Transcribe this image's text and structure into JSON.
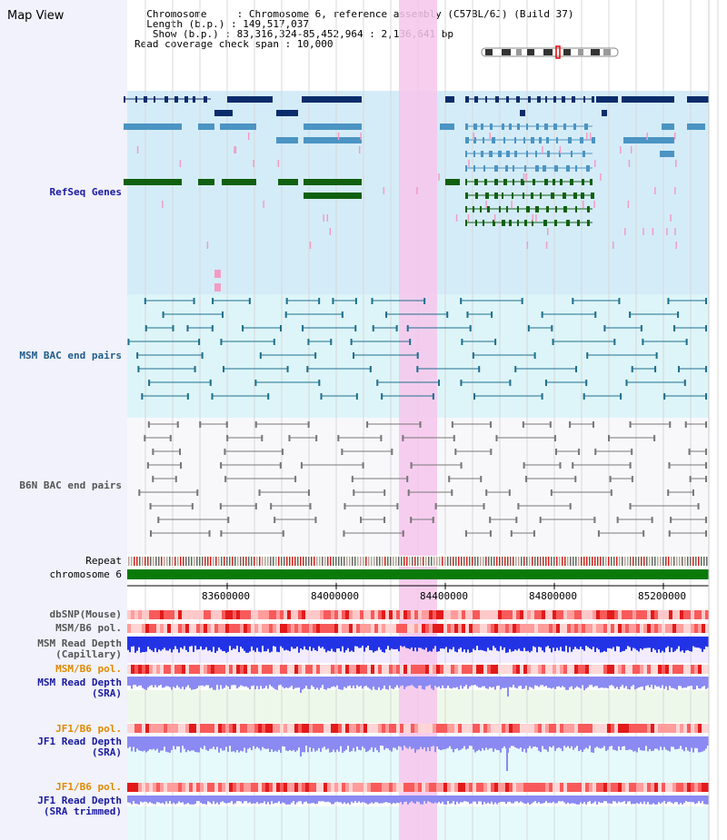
{
  "view": {
    "title": "Map View",
    "info_lines": [
      "  Chromosome     : Chromosome 6, reference assembly (C57BL/6J) (Build 37)",
      "  Length (b.p.) : 149,517,037",
      "   Show (b.p.) : 83,316,324-85,452,964 : 2,136,641 bp",
      "Read coverage check span : 10,000"
    ]
  },
  "tracks": {
    "refseq": "RefSeq Genes",
    "msm_bac": "MSM BAC end pairs",
    "b6n_bac": "B6N BAC end pairs",
    "repeat": "Repeat",
    "chromosome": "chromosome 6",
    "dbsnp": "dbSNP(Mouse)",
    "msm_b6_pol": "MSM/B6 pol.",
    "msm_depth_cap_1": "MSM Read Depth",
    "msm_depth_cap_2": "(Capillary)",
    "msm_b6_pol2": "MSM/B6 pol.",
    "msm_depth_sra_1": "MSM Read Depth",
    "msm_depth_sra_2": "(SRA)",
    "jf1_b6_pol": "JF1/B6 pol.",
    "jf1_depth_sra_1": "JF1 Read Depth",
    "jf1_depth_sra_2": "(SRA)",
    "jf1_b6_pol2": "JF1/B6 pol.",
    "jf1_depth_trim_1": "JF1 Read Depth",
    "jf1_depth_trim_2": "(SRA trimmed)"
  },
  "axis": {
    "ticks": [
      "83600000",
      "84000000",
      "84400000",
      "84800000",
      "85200000"
    ]
  },
  "colors": {
    "highlight": "#f7c6ec",
    "refseq_bg": "#d4ecf8",
    "msm_bg": "#ddf5f8",
    "gene_dark": "#0b2c6b",
    "gene_mid": "#4b94c3",
    "gene_green": "#106010",
    "chromosome": "#0a7a0a",
    "depth_blue": "#2233e6",
    "depth_lightblue": "#8a8af2"
  }
}
